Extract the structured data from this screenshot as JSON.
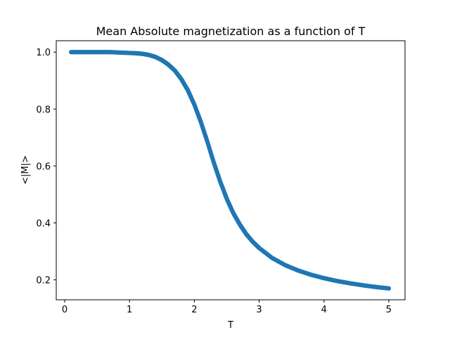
{
  "chart_data": {
    "type": "scatter",
    "title": "Mean Absolute magnetization as a function of T",
    "xlabel": "T",
    "ylabel": "<|M|>",
    "xlim": [
      -0.13,
      5.25
    ],
    "ylim": [
      0.13,
      1.04
    ],
    "xticks": [
      0,
      1,
      2,
      3,
      4,
      5
    ],
    "xtick_labels": [
      "0",
      "1",
      "2",
      "3",
      "4",
      "5"
    ],
    "yticks": [
      0.2,
      0.4,
      0.6,
      0.8,
      1.0
    ],
    "ytick_labels": [
      "0.2",
      "0.4",
      "0.6",
      "0.8",
      "1.0"
    ],
    "grid": false,
    "legend": "none",
    "series": [
      {
        "color": "#1f77b4",
        "marker": "circle",
        "x": [
          0.1,
          0.3,
          0.5,
          0.7,
          0.9,
          1.1,
          1.2,
          1.3,
          1.4,
          1.5,
          1.6,
          1.7,
          1.8,
          1.9,
          2.0,
          2.1,
          2.2,
          2.3,
          2.4,
          2.5,
          2.6,
          2.7,
          2.8,
          2.9,
          3.0,
          3.2,
          3.4,
          3.6,
          3.8,
          4.0,
          4.2,
          4.4,
          4.6,
          4.8,
          5.0
        ],
        "y": [
          1.0,
          1.0,
          1.0,
          1.0,
          0.998,
          0.996,
          0.994,
          0.99,
          0.983,
          0.972,
          0.956,
          0.935,
          0.905,
          0.866,
          0.816,
          0.755,
          0.686,
          0.612,
          0.545,
          0.485,
          0.435,
          0.395,
          0.361,
          0.334,
          0.312,
          0.277,
          0.252,
          0.233,
          0.218,
          0.206,
          0.196,
          0.188,
          0.181,
          0.175,
          0.17
        ]
      }
    ]
  }
}
